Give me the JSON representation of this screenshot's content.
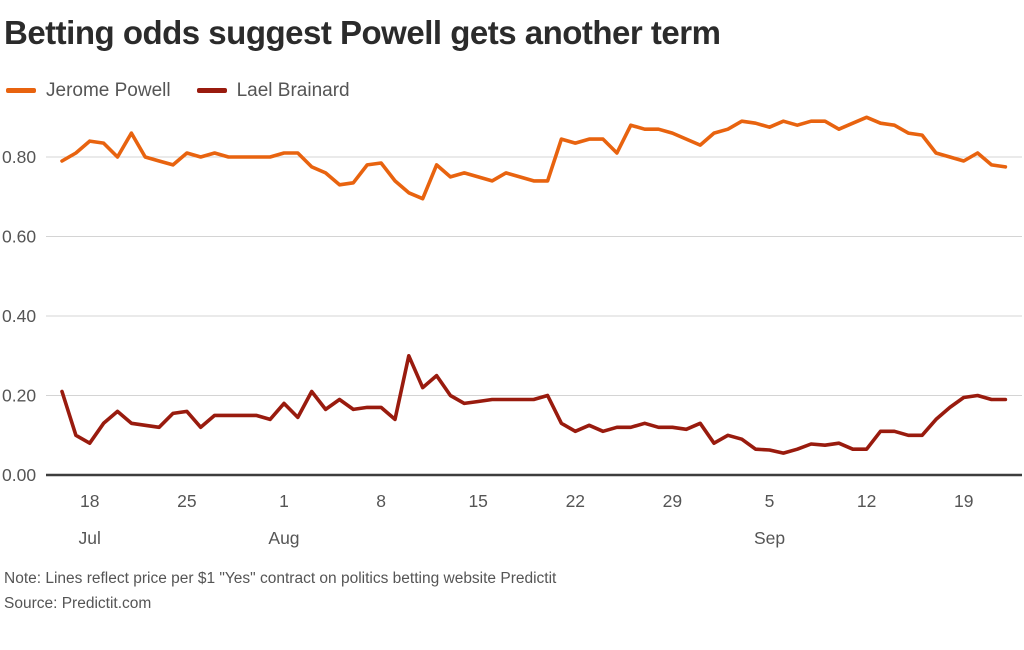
{
  "title": "Betting odds suggest Powell gets another term",
  "legend": {
    "items": [
      {
        "label": "Jerome Powell",
        "color": "#E8630F"
      },
      {
        "label": "Lael Brainard",
        "color": "#991B0E"
      }
    ]
  },
  "footer": {
    "note": "Note: Lines reflect price per $1 \"Yes\" contract on politics betting website Predictit",
    "source": "Source: Predictit.com"
  },
  "chart_data": {
    "type": "line",
    "title": "Betting odds suggest Powell gets another term",
    "xlabel": "",
    "ylabel": "",
    "ylim": [
      0,
      0.95
    ],
    "grid": "horizontal",
    "legend_position": "top-left",
    "x_unit": "daily points from mid-July to late September",
    "y_ticks": [
      {
        "value": 0.0,
        "label": "0.00"
      },
      {
        "value": 0.2,
        "label": "0.20"
      },
      {
        "value": 0.4,
        "label": "0.40"
      },
      {
        "value": 0.6,
        "label": "0.60"
      },
      {
        "value": 0.8,
        "label": "0.80"
      }
    ],
    "x_ticks": [
      {
        "index": 2,
        "label": "18"
      },
      {
        "index": 9,
        "label": "25"
      },
      {
        "index": 16,
        "label": "1"
      },
      {
        "index": 23,
        "label": "8"
      },
      {
        "index": 30,
        "label": "15"
      },
      {
        "index": 37,
        "label": "22"
      },
      {
        "index": 44,
        "label": "29"
      },
      {
        "index": 51,
        "label": "5"
      },
      {
        "index": 58,
        "label": "12"
      },
      {
        "index": 65,
        "label": "19"
      }
    ],
    "month_labels": [
      {
        "index": 2,
        "label": "Jul"
      },
      {
        "index": 16,
        "label": "Aug"
      },
      {
        "index": 51,
        "label": "Sep"
      }
    ],
    "series": [
      {
        "name": "Jerome Powell",
        "color": "#E8630F",
        "values": [
          0.79,
          0.81,
          0.84,
          0.835,
          0.8,
          0.86,
          0.8,
          0.79,
          0.78,
          0.81,
          0.8,
          0.81,
          0.8,
          0.8,
          0.8,
          0.8,
          0.81,
          0.81,
          0.775,
          0.76,
          0.73,
          0.735,
          0.78,
          0.785,
          0.74,
          0.71,
          0.695,
          0.78,
          0.75,
          0.76,
          0.75,
          0.74,
          0.76,
          0.75,
          0.74,
          0.74,
          0.845,
          0.835,
          0.845,
          0.845,
          0.81,
          0.88,
          0.87,
          0.87,
          0.86,
          0.845,
          0.83,
          0.86,
          0.87,
          0.89,
          0.885,
          0.875,
          0.89,
          0.88,
          0.89,
          0.89,
          0.87,
          0.885,
          0.9,
          0.885,
          0.88,
          0.86,
          0.855,
          0.81,
          0.8,
          0.79,
          0.81,
          0.78,
          0.775
        ]
      },
      {
        "name": "Lael Brainard",
        "color": "#991B0E",
        "values": [
          0.21,
          0.1,
          0.08,
          0.13,
          0.16,
          0.13,
          0.125,
          0.12,
          0.155,
          0.16,
          0.12,
          0.15,
          0.15,
          0.15,
          0.15,
          0.14,
          0.18,
          0.145,
          0.21,
          0.165,
          0.19,
          0.165,
          0.17,
          0.17,
          0.14,
          0.3,
          0.22,
          0.25,
          0.2,
          0.18,
          0.185,
          0.19,
          0.19,
          0.19,
          0.19,
          0.2,
          0.13,
          0.11,
          0.125,
          0.11,
          0.12,
          0.12,
          0.13,
          0.12,
          0.12,
          0.115,
          0.13,
          0.08,
          0.1,
          0.09,
          0.065,
          0.063,
          0.055,
          0.065,
          0.078,
          0.075,
          0.08,
          0.065,
          0.065,
          0.11,
          0.11,
          0.1,
          0.1,
          0.14,
          0.17,
          0.195,
          0.2,
          0.19,
          0.19
        ]
      }
    ]
  }
}
